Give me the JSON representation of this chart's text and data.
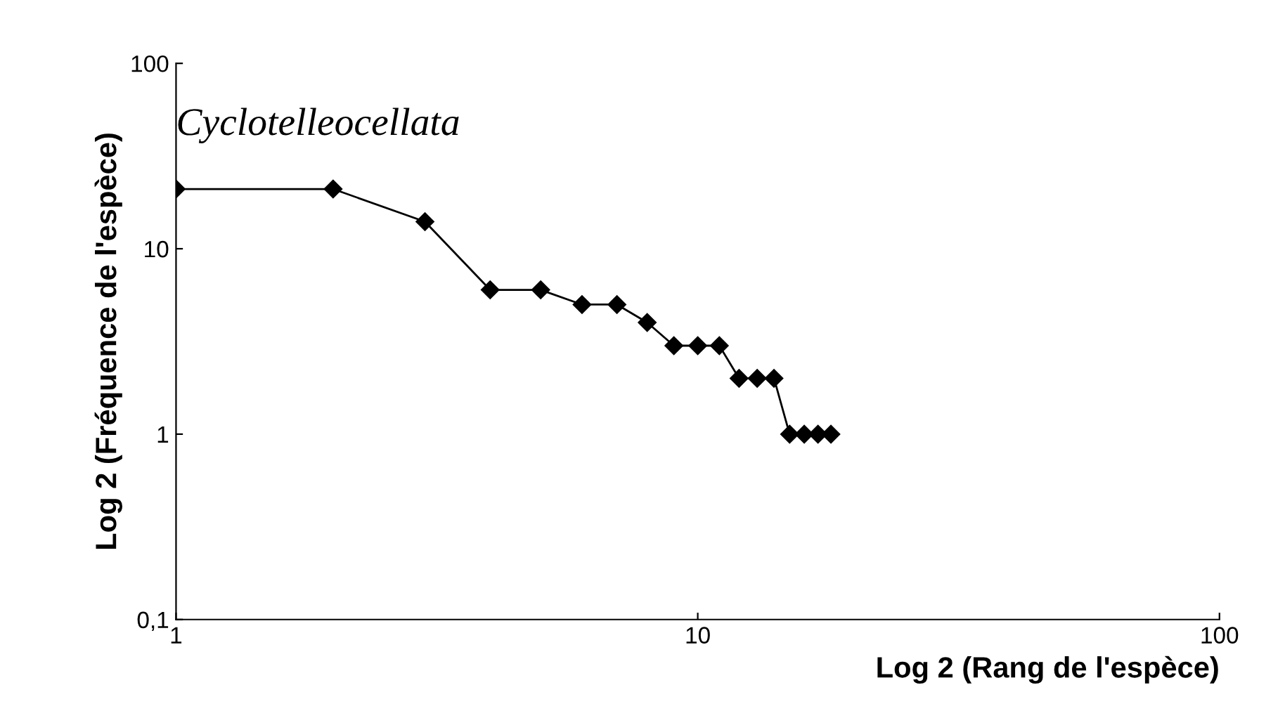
{
  "chart_data": {
    "type": "line",
    "log": "xy",
    "xlabel": "Log 2 (Rang de l'espèce)",
    "ylabel": "Log 2 (Fréquence de l'espèce)",
    "annotations": [
      "Cyclotelleocellata"
    ],
    "x": [
      1,
      2,
      3,
      4,
      5,
      6,
      7,
      8,
      9,
      10,
      11,
      12,
      13,
      14,
      15,
      16,
      17,
      18
    ],
    "series": [
      {
        "color": "#000000",
        "values": [
          21,
          21,
          14,
          6,
          6,
          5,
          5,
          4,
          3,
          3,
          3,
          2,
          2,
          2,
          1,
          1,
          1,
          1
        ]
      }
    ],
    "xlim": [
      1,
      100
    ],
    "xticks": [
      1,
      10,
      100
    ],
    "ylim": [
      0.1,
      100
    ],
    "yticks": [
      {
        "value": 0.1,
        "label": "0,1"
      },
      1,
      10,
      100
    ],
    "marker": "diamond",
    "line_style": "solid",
    "grid": false,
    "legend": false
  }
}
